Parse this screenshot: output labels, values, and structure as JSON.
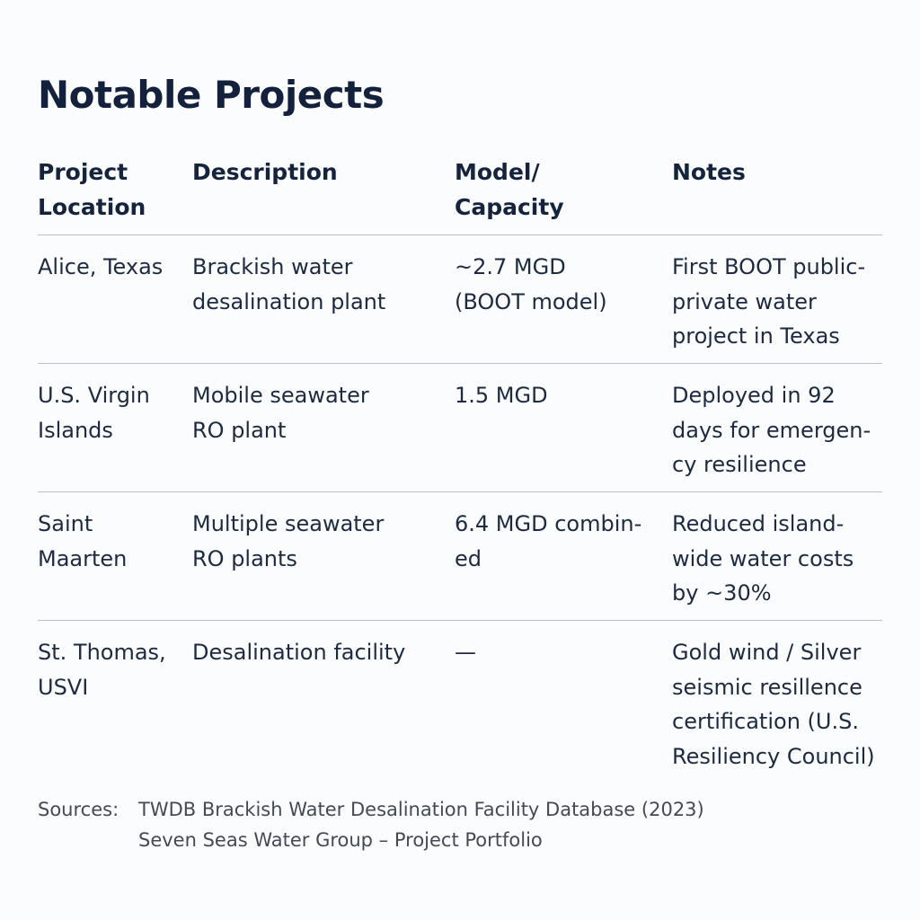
{
  "title": "Notable Projects",
  "table": {
    "headers": [
      "Project\nLocation",
      "Description",
      "Model/\nCapacity",
      "Notes"
    ],
    "rows": [
      [
        "Alice, Texas",
        "Brackish water\ndesalination plant",
        "~2.7 MGD\n(BOOT model)",
        "First BOOT public-\nprivate water\nproject in Texas"
      ],
      [
        "U.S. Virgin\nIslands",
        "Mobile seawater\nRO plant",
        "1.5 MGD",
        "Deployed in 92\ndays for emergen-\ncy resilience"
      ],
      [
        "Saint\nMaarten",
        "Multiple seawater\nRO plants",
        "6.4 MGD combin-\ned",
        "Reduced island-\nwide water costs\nby ~30%"
      ],
      [
        "St. Thomas,\nUSVI",
        "Desalination facility",
        "—",
        "Gold wind / Silver\nseismic resillence\ncertification (U.S.\nResiliency Council)"
      ]
    ]
  },
  "sources": {
    "label": "Sources:",
    "items": [
      "TWDB Brackish Water Desalination Facility Database (2023)",
      "Seven Seas Water Group – Project Portfolio"
    ]
  }
}
